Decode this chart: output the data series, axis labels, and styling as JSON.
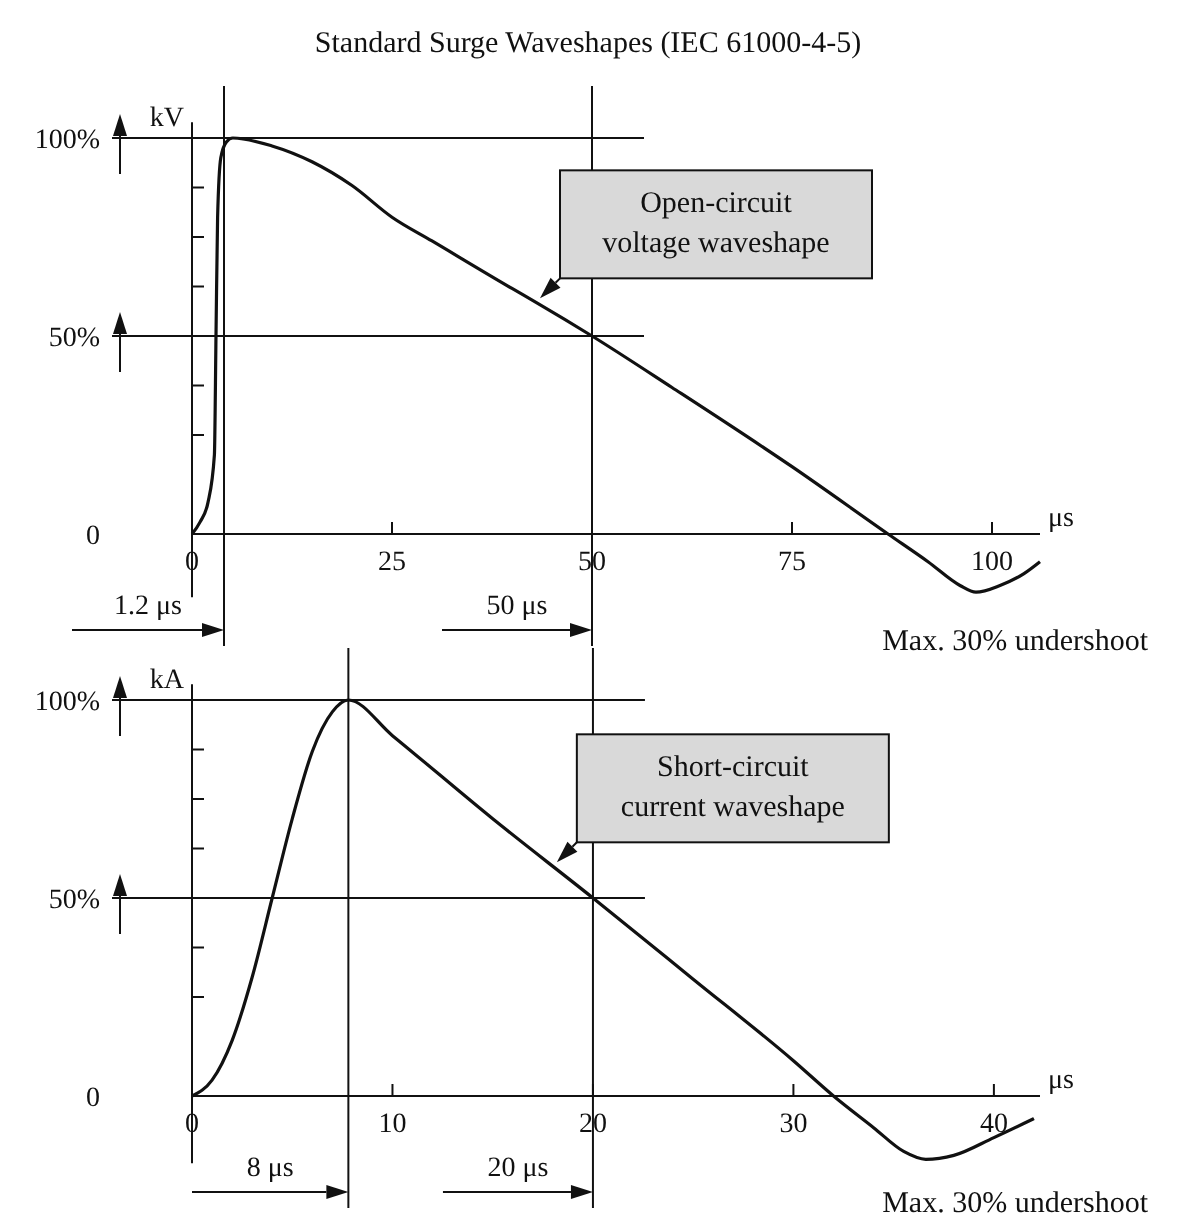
{
  "chart_data": [
    {
      "type": "line",
      "title": "Standard Surge Waveshapes (IEC 61000-4-5)",
      "xlabel": "μs",
      "ylabel": "kV",
      "color": "#111111",
      "x": [
        0,
        1,
        2,
        2.8,
        3,
        3.2,
        3.6,
        4.3,
        5.1,
        10,
        15,
        20,
        25,
        30,
        40,
        43,
        50,
        60,
        75,
        87,
        92,
        96,
        98,
        101,
        104,
        106
      ],
      "values": [
        0,
        3,
        8,
        20,
        50,
        80,
        95,
        99,
        100,
        98,
        94,
        88,
        80,
        74,
        62,
        58.5,
        50,
        37,
        17,
        0,
        -7,
        -13,
        -14.7,
        -13,
        -10,
        -7
      ],
      "xlim": [
        0,
        106
      ],
      "xticks": [
        0,
        25,
        50,
        75,
        100
      ],
      "ylim": [
        -16,
        104
      ],
      "yticks": [
        0,
        {
          "value": 25,
          "label": null
        },
        {
          "value": 37.5,
          "label": null
        },
        {
          "value": 50,
          "label": "50%"
        },
        {
          "value": 62.5,
          "label": null
        },
        {
          "value": 75,
          "label": null
        },
        {
          "value": 87.5,
          "label": null
        },
        {
          "value": 100,
          "label": "100%"
        }
      ],
      "ref_lines": [
        {
          "axis": "x",
          "value": 4,
          "label": "1.2 μs"
        },
        {
          "axis": "x",
          "value": 50,
          "label": "50 μs"
        },
        {
          "axis": "y",
          "value": 100
        },
        {
          "axis": "y",
          "value": 50
        }
      ],
      "annotations": [
        {
          "text": "Open-circuit\nvoltage waveshape",
          "x": 43,
          "y": 58.5
        },
        "Max. 30% undershoot"
      ]
    },
    {
      "type": "line",
      "xlabel": "μs",
      "ylabel": "kA",
      "color": "#111111",
      "x": [
        0,
        1,
        2,
        3,
        4,
        5,
        6,
        7,
        7.8,
        10,
        15,
        20,
        25,
        30,
        32,
        34,
        35.5,
        36.6,
        38,
        40,
        42
      ],
      "values": [
        0,
        4,
        14,
        30,
        50,
        70,
        87,
        97,
        100,
        91,
        70,
        50,
        29.5,
        8.9,
        0,
        -8,
        -14,
        -16,
        -15,
        -10.5,
        -5.7
      ],
      "xlim": [
        0,
        42.3
      ],
      "xticks": [
        0,
        10,
        20,
        30,
        40
      ],
      "ylim": [
        -17,
        104
      ],
      "yticks": [
        0,
        {
          "value": 25,
          "label": null
        },
        {
          "value": 37.5,
          "label": null
        },
        {
          "value": 50,
          "label": "50%"
        },
        {
          "value": 62.5,
          "label": null
        },
        {
          "value": 75,
          "label": null
        },
        {
          "value": 87.5,
          "label": null
        },
        {
          "value": 100,
          "label": "100%"
        }
      ],
      "ref_lines": [
        {
          "axis": "x",
          "value": 7.8,
          "label": "8 μs"
        },
        {
          "axis": "x",
          "value": 20,
          "label": "20 μs"
        },
        {
          "axis": "y",
          "value": 100
        },
        {
          "axis": "y",
          "value": 50
        }
      ],
      "annotations": [
        {
          "text": "Short-circuit\ncurrent waveshape",
          "x": 18,
          "y": 58
        },
        "Max. 30% undershoot"
      ]
    }
  ]
}
